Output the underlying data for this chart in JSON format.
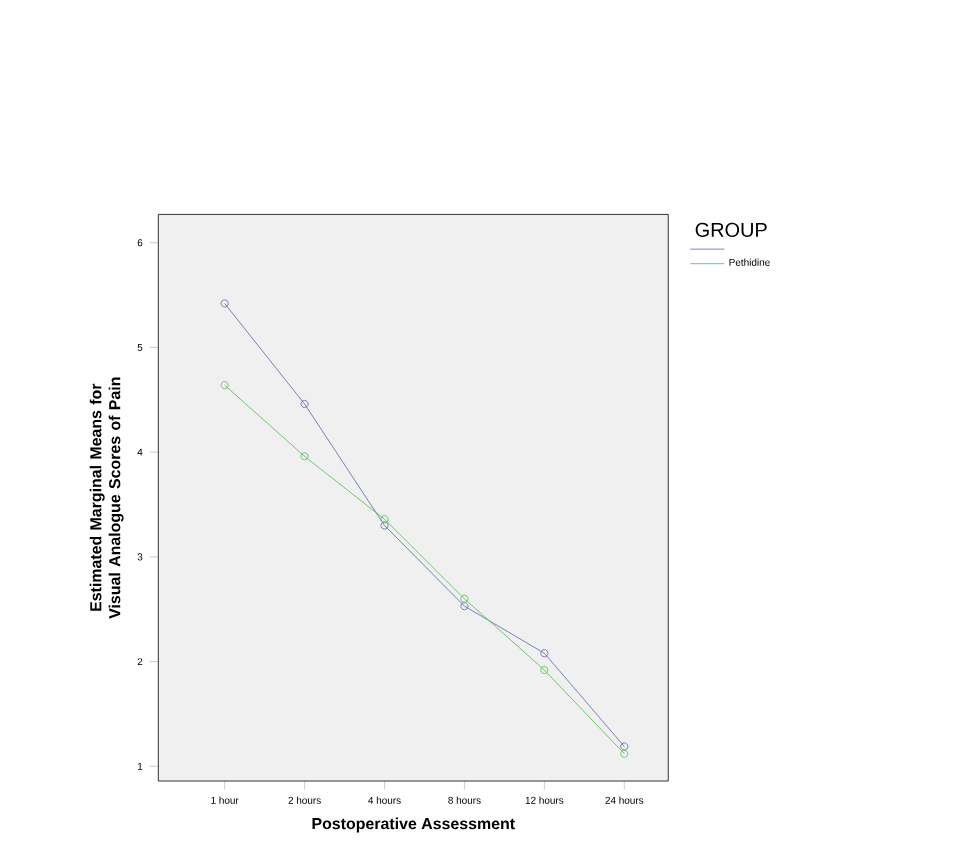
{
  "chart_data": {
    "type": "line",
    "xlabel": "Postoperative Assessment",
    "ylabel": "Estimated Marginal Means for Visual Analogue Scores of Pain",
    "legend_title": "GROUP",
    "categories": [
      "1 hour",
      "2 hours",
      "4 hours",
      "8 hours",
      "12 hours",
      "24 hours"
    ],
    "series": [
      {
        "color": "#5a64b4",
        "values": [
          5.42,
          4.46,
          3.3,
          2.53,
          2.08,
          1.19
        ]
      },
      {
        "name": "Pethidine",
        "color": "#4cbf4c",
        "values": [
          4.64,
          3.96,
          3.36,
          2.6,
          1.92,
          1.12
        ]
      }
    ],
    "ylim": [
      0.86,
      6.27
    ],
    "yticks": [
      1,
      2,
      3,
      4,
      5,
      6
    ],
    "grid": false,
    "legend": "top right",
    "marker": "circle",
    "line_style": "solid"
  }
}
